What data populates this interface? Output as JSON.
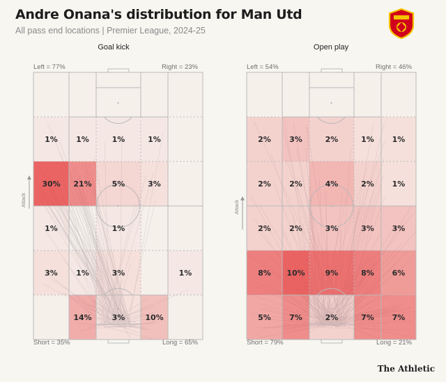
{
  "header": {
    "title": "Andre Onana's distribution for Man Utd",
    "subtitle": "All pass end locations | Premier League, 2024-25"
  },
  "brand": "The Athletic",
  "colors": {
    "heat_base": "#e84a4a",
    "pitch_line": "#b9b9b9",
    "background": "#f7f6f1",
    "arrow": "#c9c9c9"
  },
  "crest_icon": "manchester-united-crest",
  "chart_data": [
    {
      "type": "heatmap",
      "title": "Goal kick",
      "attack_label": "Attack",
      "top_left_label": "Left = 77%",
      "top_right_label": "Right = 23%",
      "bottom_left_label": "Short = 35%",
      "bottom_right_label": "Long = 65%",
      "cells": [
        [
          "",
          "",
          "",
          "",
          ""
        ],
        [
          "1%",
          "1%",
          "1%",
          "1%",
          ""
        ],
        [
          "30%",
          "21%",
          "5%",
          "3%",
          ""
        ],
        [
          "1%",
          "",
          "1%",
          "",
          ""
        ],
        [
          "3%",
          "1%",
          "3%",
          "",
          "1%"
        ],
        [
          "",
          "14%",
          "3%",
          "10%",
          ""
        ]
      ],
      "values": [
        [
          0,
          0,
          0,
          0,
          0
        ],
        [
          1,
          1,
          1,
          1,
          0
        ],
        [
          30,
          21,
          5,
          3,
          0
        ],
        [
          1,
          0,
          1,
          0,
          0
        ],
        [
          3,
          1,
          3,
          0,
          1
        ],
        [
          0,
          14,
          3,
          10,
          0
        ]
      ]
    },
    {
      "type": "heatmap",
      "title": "Open play",
      "attack_label": "Attack",
      "top_left_label": "Left = 54%",
      "top_right_label": "Right = 46%",
      "bottom_left_label": "Short = 79%",
      "bottom_right_label": "Long = 21%",
      "cells": [
        [
          "",
          "",
          "",
          "",
          ""
        ],
        [
          "2%",
          "3%",
          "2%",
          "1%",
          "1%"
        ],
        [
          "2%",
          "2%",
          "4%",
          "2%",
          "1%"
        ],
        [
          "2%",
          "2%",
          "3%",
          "3%",
          "3%"
        ],
        [
          "8%",
          "10%",
          "9%",
          "8%",
          "6%"
        ],
        [
          "5%",
          "7%",
          "2%",
          "7%",
          "7%"
        ]
      ],
      "values": [
        [
          0,
          0,
          0,
          0,
          0
        ],
        [
          2,
          3,
          2,
          1,
          1
        ],
        [
          2,
          2,
          4,
          2,
          1
        ],
        [
          2,
          2,
          3,
          3,
          3
        ],
        [
          8,
          10,
          9,
          8,
          6
        ],
        [
          5,
          7,
          2,
          7,
          7
        ]
      ]
    }
  ]
}
